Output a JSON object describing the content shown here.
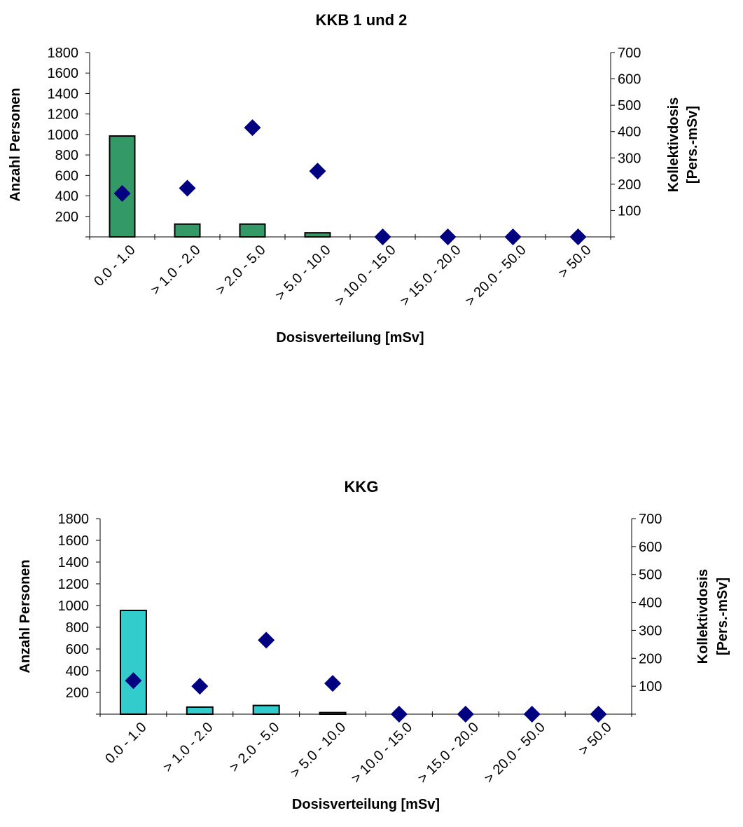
{
  "chart_data": [
    {
      "type": "bar",
      "title": "KKB 1 und 2",
      "xlabel": "Dosisverteilung [mSv]",
      "ylabel": "Anzahl Personen",
      "y2label_line1": "Kollektivdosis",
      "y2label_line2": "[Pers.-mSv]",
      "categories": [
        "0.0 - 1.0",
        "> 1.0 - 2.0",
        "> 2.0 - 5.0",
        "> 5.0 - 10.0",
        "> 10.0 - 15.0",
        "> 15.0 - 20.0",
        "> 20.0 - 50.0",
        "> 50.0"
      ],
      "ylim": [
        0,
        1800
      ],
      "yticks": [
        "200",
        "400",
        "600",
        "800",
        "1000",
        "1200",
        "1400",
        "1600",
        "1800"
      ],
      "y2lim": [
        0,
        700
      ],
      "y2ticks": [
        "100",
        "200",
        "300",
        "400",
        "500",
        "600",
        "700"
      ],
      "grid": false,
      "bar_color": "#339966",
      "marker_color": "#000080",
      "bars": {
        "axis": "left",
        "values": [
          985,
          125,
          125,
          40,
          0,
          0,
          0,
          0
        ]
      },
      "markers": {
        "axis": "right",
        "shape": "diamond",
        "values": [
          165,
          185,
          415,
          250,
          0,
          0,
          0,
          0
        ]
      }
    },
    {
      "type": "bar",
      "title": "KKG",
      "xlabel": "Dosisverteilung [mSv]",
      "ylabel": "Anzahl Personen",
      "y2label_line1": "Kollektivdosis",
      "y2label_line2": "[Pers.-mSv]",
      "categories": [
        "0.0 - 1.0",
        "> 1.0 - 2.0",
        "> 2.0 - 5.0",
        "> 5.0 - 10.0",
        "> 10.0 - 15.0",
        "> 15.0 - 20.0",
        "> 20.0 - 50.0",
        "> 50.0"
      ],
      "ylim": [
        0,
        1800
      ],
      "yticks": [
        "200",
        "400",
        "600",
        "800",
        "1000",
        "1200",
        "1400",
        "1600",
        "1800"
      ],
      "y2lim": [
        0,
        700
      ],
      "y2ticks": [
        "100",
        "200",
        "300",
        "400",
        "500",
        "600",
        "700"
      ],
      "grid": false,
      "bar_color": "#33CCCC",
      "marker_color": "#000080",
      "bars": {
        "axis": "left",
        "values": [
          955,
          65,
          80,
          15,
          0,
          0,
          0,
          0
        ]
      },
      "markers": {
        "axis": "right",
        "shape": "diamond",
        "values": [
          120,
          100,
          265,
          110,
          0,
          0,
          0,
          0
        ]
      }
    }
  ]
}
